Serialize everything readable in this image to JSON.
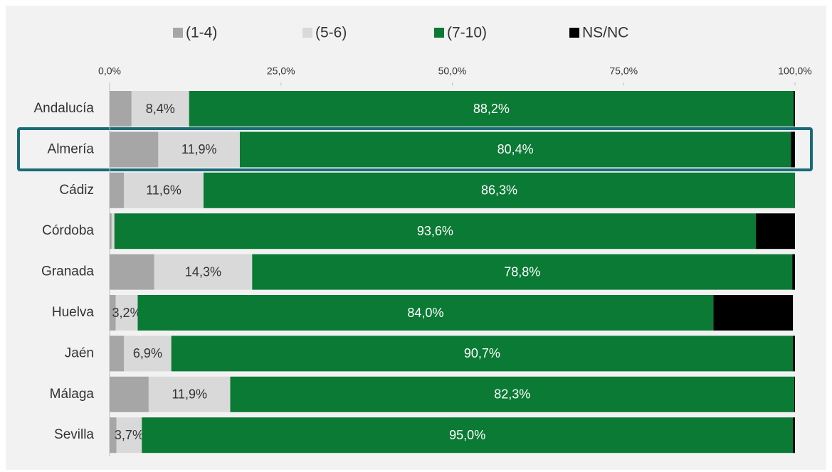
{
  "chart_data": {
    "type": "stacked_barh",
    "categories": [
      "Andalucía",
      "Almería",
      "Cádiz",
      "Córdoba",
      "Granada",
      "Huelva",
      "Jaén",
      "Málaga",
      "Sevilla"
    ],
    "series": [
      {
        "name": "(1-4)",
        "color": "#a6a6a6",
        "values": [
          3.2,
          7.1,
          2.1,
          0.3,
          6.5,
          0.9,
          2.1,
          5.7,
          1.0
        ]
      },
      {
        "name": "(5-6)",
        "color": "#d9d9d9",
        "values": [
          8.4,
          11.9,
          11.6,
          0.4,
          14.3,
          3.2,
          6.9,
          11.9,
          3.7
        ],
        "value_labels": [
          "8,4%",
          "11,9%",
          "11,6%",
          null,
          "14,3%",
          "3,2%",
          "6,9%",
          "11,9%",
          "3,7%"
        ]
      },
      {
        "name": "(7-10)",
        "color": "#0a7a34",
        "values": [
          88.2,
          80.4,
          86.3,
          93.6,
          78.8,
          84.0,
          90.7,
          82.3,
          95.0
        ],
        "value_labels": [
          "88,2%",
          "80,4%",
          "86,3%",
          "93,6%",
          "78,8%",
          "84,0%",
          "90,7%",
          "82,3%",
          "95,0%"
        ]
      },
      {
        "name": "NS/NC",
        "color": "#000000",
        "values": [
          0.2,
          0.6,
          0.0,
          5.7,
          0.4,
          11.6,
          0.3,
          0.1,
          0.3
        ]
      }
    ],
    "xlim": [
      0,
      100
    ],
    "xticks": [
      {
        "value": 0,
        "label": "0,0%"
      },
      {
        "value": 25,
        "label": "25,0%"
      },
      {
        "value": 50,
        "label": "50,0%"
      },
      {
        "value": 75,
        "label": "75,0%"
      },
      {
        "value": 100,
        "label": "100,0%"
      }
    ]
  }
}
